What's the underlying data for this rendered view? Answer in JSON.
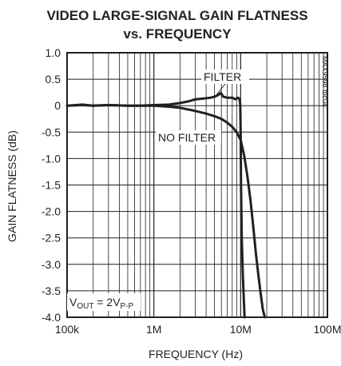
{
  "chart_data": {
    "type": "line",
    "title_line1": "VIDEO LARGE-SIGNAL GAIN FLATNESS",
    "title_line2": "vs. FREQUENCY",
    "xlabel": "FREQUENCY (Hz)",
    "ylabel": "GAIN FLATNESS (dB)",
    "x_scale": "log",
    "xlim": [
      100000,
      100000000
    ],
    "ylim": [
      -4.0,
      1.0
    ],
    "x_ticks": [
      100000,
      1000000,
      10000000,
      100000000
    ],
    "x_tick_labels": [
      "100k",
      "1M",
      "10M",
      "100M"
    ],
    "y_ticks": [
      1.0,
      0.5,
      0,
      -0.5,
      -1.0,
      -1.5,
      -2.0,
      -2.5,
      -3.0,
      -3.5,
      -4.0
    ],
    "y_tick_labels": [
      "1.0",
      "0.5",
      "0",
      "-0.5",
      "-1.0",
      "-1.5",
      "-2.0",
      "-2.5",
      "-3.0",
      "-3.5",
      "-4.0"
    ],
    "grid": true,
    "annotations": {
      "filter": "FILTER",
      "no_filter": "NO FILTER",
      "condition_v": "V",
      "condition_sub1": "OUT",
      "condition_eq": " = 2V",
      "condition_sub2": "P-P",
      "figure_id": "MAX9598 toc04"
    },
    "series": [
      {
        "name": "FILTER",
        "x": [
          100000,
          150000,
          200000,
          300000,
          500000,
          700000,
          1000000,
          1500000,
          2000000,
          2500000,
          3000000,
          3500000,
          4000000,
          4500000,
          5000000,
          5500000,
          5900000,
          6300000,
          7000000,
          8000000,
          8700000,
          9300000,
          9700000,
          9900000,
          10000000,
          10100000,
          10300000,
          10600000,
          10900000,
          11100000
        ],
        "y": [
          0.0,
          0.01,
          0.0,
          0.01,
          0.0,
          0.0,
          0.01,
          0.02,
          0.05,
          0.08,
          0.12,
          0.13,
          0.14,
          0.15,
          0.17,
          0.2,
          0.24,
          0.17,
          0.15,
          0.15,
          0.12,
          0.15,
          0.13,
          0.02,
          -0.5,
          -1.5,
          -2.5,
          -3.2,
          -3.7,
          -4.0
        ]
      },
      {
        "name": "NO FILTER",
        "x": [
          100000,
          150000,
          200000,
          300000,
          500000,
          700000,
          1000000,
          1500000,
          2000000,
          3000000,
          4000000,
          5000000,
          6000000,
          7000000,
          8000000,
          9000000,
          10000000,
          11000000,
          12000000,
          13000000,
          14000000,
          15000000,
          16000000,
          17000000,
          18000000,
          19000000
        ],
        "y": [
          0.0,
          0.02,
          0.0,
          0.01,
          0.0,
          0.0,
          0.0,
          -0.02,
          -0.04,
          -0.1,
          -0.15,
          -0.2,
          -0.25,
          -0.32,
          -0.4,
          -0.5,
          -0.65,
          -0.95,
          -1.35,
          -1.8,
          -2.3,
          -2.8,
          -3.2,
          -3.55,
          -3.85,
          -4.0
        ]
      }
    ]
  }
}
